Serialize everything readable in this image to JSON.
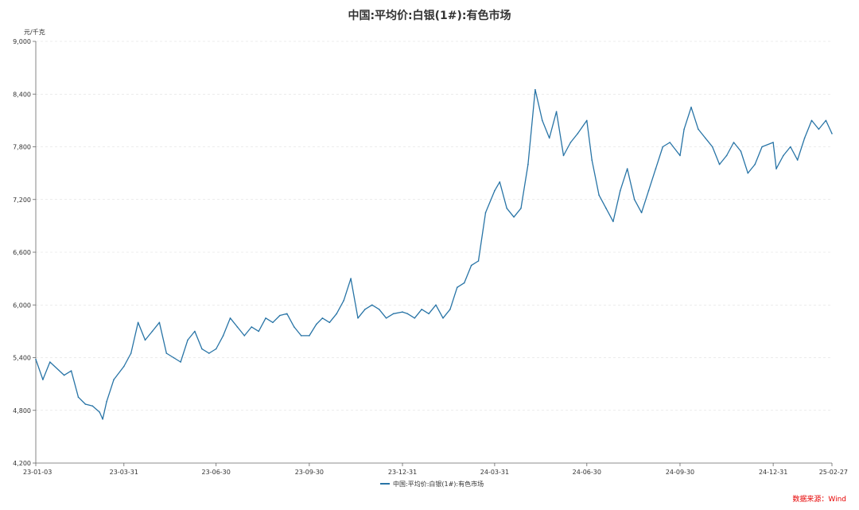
{
  "chart_data": {
    "type": "line",
    "title": "中国:平均价:白银(1#):有色市场",
    "y_unit": "元/千克",
    "ylim": [
      4200,
      9000
    ],
    "y_ticks": [
      "4,200",
      "4,800",
      "5,400",
      "6,000",
      "6,600",
      "7,200",
      "7,800",
      "8,400",
      "9,000"
    ],
    "x_ticks": [
      "23-01-03",
      "23-03-31",
      "23-06-30",
      "23-09-30",
      "23-12-31",
      "24-03-31",
      "24-06-30",
      "24-09-30",
      "24-12-31",
      "25-02-27"
    ],
    "grid": "horizontal-dashed",
    "legend_position": "bottom-center",
    "source": "数据来源：Wind",
    "series": [
      {
        "name": "中国:平均价:白银(1#):有色市场",
        "color": "#2874a6",
        "x": [
          "23-01-03",
          "23-01-10",
          "23-01-17",
          "23-01-31",
          "23-02-07",
          "23-02-14",
          "23-02-21",
          "23-02-28",
          "23-03-07",
          "23-03-10",
          "23-03-14",
          "23-03-21",
          "23-03-31",
          "23-04-07",
          "23-04-14",
          "23-04-21",
          "23-04-28",
          "23-05-05",
          "23-05-12",
          "23-05-19",
          "23-05-26",
          "23-06-02",
          "23-06-09",
          "23-06-16",
          "23-06-23",
          "23-06-30",
          "23-07-07",
          "23-07-14",
          "23-07-21",
          "23-07-28",
          "23-08-04",
          "23-08-11",
          "23-08-18",
          "23-08-25",
          "23-09-01",
          "23-09-08",
          "23-09-15",
          "23-09-22",
          "23-09-30",
          "23-10-07",
          "23-10-13",
          "23-10-20",
          "23-10-27",
          "23-11-03",
          "23-11-10",
          "23-11-17",
          "23-11-24",
          "23-12-01",
          "23-12-08",
          "23-12-15",
          "23-12-22",
          "23-12-31",
          "24-01-05",
          "24-01-12",
          "24-01-19",
          "24-01-26",
          "24-02-02",
          "24-02-09",
          "24-02-16",
          "24-02-23",
          "24-03-01",
          "24-03-08",
          "24-03-15",
          "24-03-22",
          "24-03-31",
          "24-04-05",
          "24-04-12",
          "24-04-19",
          "24-04-26",
          "24-05-03",
          "24-05-10",
          "24-05-17",
          "24-05-24",
          "24-05-31",
          "24-06-07",
          "24-06-14",
          "24-06-21",
          "24-06-30",
          "24-07-05",
          "24-07-12",
          "24-07-19",
          "24-07-26",
          "24-08-02",
          "24-08-09",
          "24-08-16",
          "24-08-23",
          "24-08-30",
          "24-09-06",
          "24-09-13",
          "24-09-20",
          "24-09-30",
          "24-10-04",
          "24-10-11",
          "24-10-18",
          "24-10-25",
          "24-11-01",
          "24-11-08",
          "24-11-15",
          "24-11-22",
          "24-11-29",
          "24-12-06",
          "24-12-13",
          "24-12-20",
          "24-12-31",
          "25-01-03",
          "25-01-10",
          "25-01-17",
          "25-01-24",
          "25-01-31",
          "25-02-07",
          "25-02-14",
          "25-02-21",
          "25-02-27"
        ],
        "values": [
          5380,
          5150,
          5350,
          5200,
          5250,
          4950,
          4870,
          4850,
          4780,
          4700,
          4900,
          5150,
          5300,
          5450,
          5800,
          5600,
          5700,
          5800,
          5450,
          5400,
          5350,
          5600,
          5700,
          5500,
          5450,
          5500,
          5650,
          5850,
          5750,
          5650,
          5750,
          5700,
          5850,
          5800,
          5880,
          5900,
          5750,
          5650,
          5650,
          5780,
          5850,
          5800,
          5900,
          6050,
          6300,
          5850,
          5950,
          6000,
          5950,
          5850,
          5900,
          5920,
          5900,
          5850,
          5950,
          5900,
          6000,
          5850,
          5950,
          6200,
          6250,
          6450,
          6500,
          7050,
          7300,
          7400,
          7100,
          7000,
          7100,
          7600,
          8450,
          8100,
          7900,
          8200,
          7700,
          7850,
          7950,
          8100,
          7650,
          7250,
          7100,
          6950,
          7300,
          7550,
          7200,
          7050,
          7300,
          7550,
          7800,
          7850,
          7700,
          8000,
          8250,
          8000,
          7900,
          7800,
          7600,
          7700,
          7850,
          7750,
          7500,
          7600,
          7800,
          7850,
          7550,
          7700,
          7800,
          7650,
          7900,
          8100,
          8000,
          8100,
          7950
        ]
      }
    ]
  }
}
